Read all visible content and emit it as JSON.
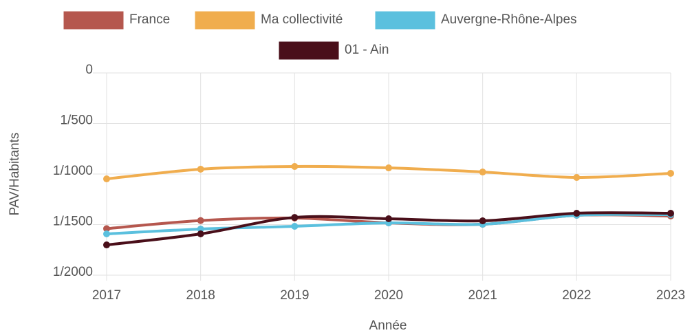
{
  "chart_data": {
    "type": "line",
    "x_label": "Année",
    "y_label": "PAV/Habitants",
    "categories": [
      "2017",
      "2018",
      "2019",
      "2020",
      "2021",
      "2022",
      "2023"
    ],
    "series": [
      {
        "name": "France",
        "color": "#b5574e",
        "values": [
          1540,
          1460,
          1435,
          1483,
          1497,
          1408,
          1415
        ]
      },
      {
        "name": "Ma collectivité",
        "color": "#f0ad4e",
        "values": [
          1048,
          952,
          925,
          939,
          980,
          1034,
          993
        ]
      },
      {
        "name": "Auvergne-Rhône-Alpes",
        "color": "#5bc0de",
        "values": [
          1592,
          1544,
          1517,
          1483,
          1497,
          1408,
          1401
        ]
      },
      {
        "name": "01 - Ain",
        "color": "#4a0f1a",
        "values": [
          1701,
          1592,
          1429,
          1442,
          1463,
          1388,
          1388
        ]
      }
    ],
    "ylim": [
      2000,
      0
    ],
    "yticks": [
      0,
      {
        "value": 500,
        "label": "1/500"
      },
      {
        "value": 1000,
        "label": "1/1000"
      },
      {
        "value": 1500,
        "label": "1/1500"
      },
      {
        "value": 2000,
        "label": "1/2000"
      }
    ],
    "grid": true,
    "legend": "top"
  }
}
